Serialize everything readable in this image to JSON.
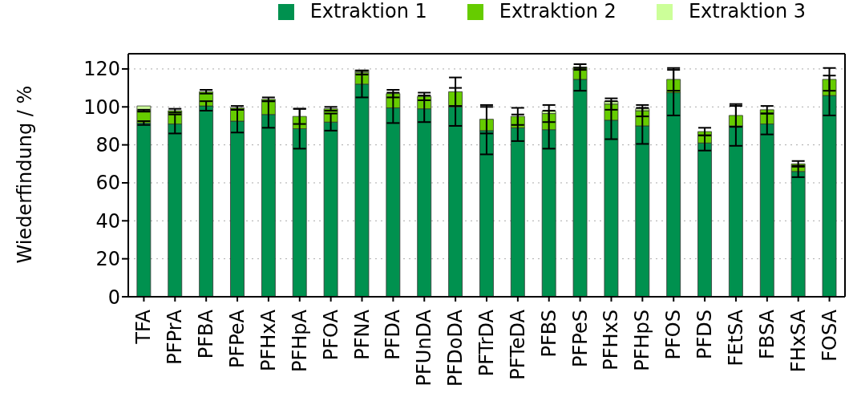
{
  "chart_data": {
    "type": "bar",
    "stacked": true,
    "ylabel": "Wiederfindung / %",
    "categories": [
      "TFA",
      "PFPrA",
      "PFBA",
      "PFPeA",
      "PFHxA",
      "PFHpA",
      "PFOA",
      "PFNA",
      "PFDA",
      "PFUnDA",
      "PFDoDA",
      "PFTrDA",
      "PFTeDA",
      "PFBS",
      "PFPeS",
      "PFHxS",
      "PFHpS",
      "PFOS",
      "PFDS",
      "FEtSA",
      "FBSA",
      "FHxSA",
      "FOSA"
    ],
    "series": [
      {
        "name": "Extraktion 1",
        "color": "#00914f",
        "values": [
          91.5,
          91,
          100.5,
          92.5,
          96,
          88.5,
          92,
          112,
          99.5,
          99,
          100,
          87.5,
          89,
          88,
          114.5,
          93,
          90,
          107.5,
          81,
          90,
          91,
          66,
          106
        ],
        "errors": [
          1,
          5,
          2.5,
          6,
          7,
          10.5,
          4.5,
          7,
          8,
          7,
          10,
          12.5,
          7,
          10,
          6,
          10,
          9.5,
          12,
          4,
          10.5,
          5.5,
          3,
          10.5
        ]
      },
      {
        "name": "Extraktion 2",
        "color": "#66cc00",
        "values": [
          6.5,
          7,
          7.5,
          7,
          8,
          6.5,
          7,
          6,
          7.5,
          6.5,
          8,
          6,
          6,
          8.5,
          6.5,
          8.5,
          8,
          7,
          6,
          5.5,
          7.5,
          4,
          8.5
        ],
        "errors": [
          0.5,
          1,
          1,
          1,
          1,
          4,
          1,
          1,
          2,
          2,
          7.5,
          7.5,
          4.5,
          4.5,
          1.5,
          3,
          3,
          6,
          2,
          6,
          2,
          1.5,
          6
        ]
      },
      {
        "name": "Extraktion 3",
        "color": "#ccff99",
        "values": [
          2.5,
          0,
          0,
          0,
          0,
          0,
          0,
          1.5,
          null,
          0,
          null,
          0,
          0,
          1.2,
          0,
          1.4,
          1,
          0,
          0,
          0,
          0,
          0,
          0
        ]
      }
    ],
    "ylim": [
      0,
      128
    ],
    "yticks": [
      0,
      20,
      40,
      60,
      80,
      100,
      120
    ],
    "grid": "y",
    "legend": "top right"
  }
}
